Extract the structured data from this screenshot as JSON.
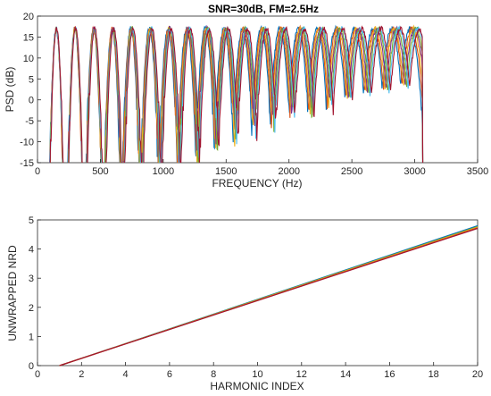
{
  "chart_data": [
    {
      "type": "line",
      "title": "SNR=30dB, FM=2.5Hz",
      "xlabel": "FREQUENCY (Hz)",
      "ylabel": "PSD (dB)",
      "xlim": [
        0,
        3500
      ],
      "ylim": [
        -15,
        20
      ],
      "xticks": [
        0,
        500,
        1000,
        1500,
        2000,
        2500,
        3000,
        3500
      ],
      "yticks": [
        -15,
        -10,
        -5,
        0,
        5,
        10,
        15,
        20
      ],
      "fundamental_hz": 150,
      "harmonics": 20,
      "peak_db": 17,
      "floor_db": -15,
      "grid": false,
      "series": [
        {
          "color": "#0072BD"
        },
        {
          "color": "#D95319"
        },
        {
          "color": "#EDB120"
        },
        {
          "color": "#7E2F8E"
        },
        {
          "color": "#77AC30"
        },
        {
          "color": "#4DBEEE"
        },
        {
          "color": "#A2142F"
        }
      ]
    },
    {
      "type": "line",
      "title": "",
      "xlabel": "HARMONIC INDEX",
      "ylabel": "UNWRAPPED NRD",
      "xlim": [
        0,
        20
      ],
      "ylim": [
        0,
        5
      ],
      "xticks": [
        0,
        2,
        4,
        6,
        8,
        10,
        12,
        14,
        16,
        18,
        20
      ],
      "yticks": [
        0,
        1,
        2,
        3,
        4,
        5
      ],
      "grid": false,
      "series": [
        {
          "color": "#0072BD",
          "x": [
            1,
            20
          ],
          "y": [
            0,
            4.8
          ]
        },
        {
          "color": "#77AC30",
          "x": [
            1,
            20
          ],
          "y": [
            0,
            4.77
          ]
        },
        {
          "color": "#EDB120",
          "x": [
            1,
            20
          ],
          "y": [
            0,
            4.75
          ]
        },
        {
          "color": "#D95319",
          "x": [
            1,
            20
          ],
          "y": [
            0,
            4.73
          ]
        },
        {
          "color": "#A2142F",
          "x": [
            1,
            20
          ],
          "y": [
            0,
            4.71
          ]
        }
      ]
    }
  ]
}
